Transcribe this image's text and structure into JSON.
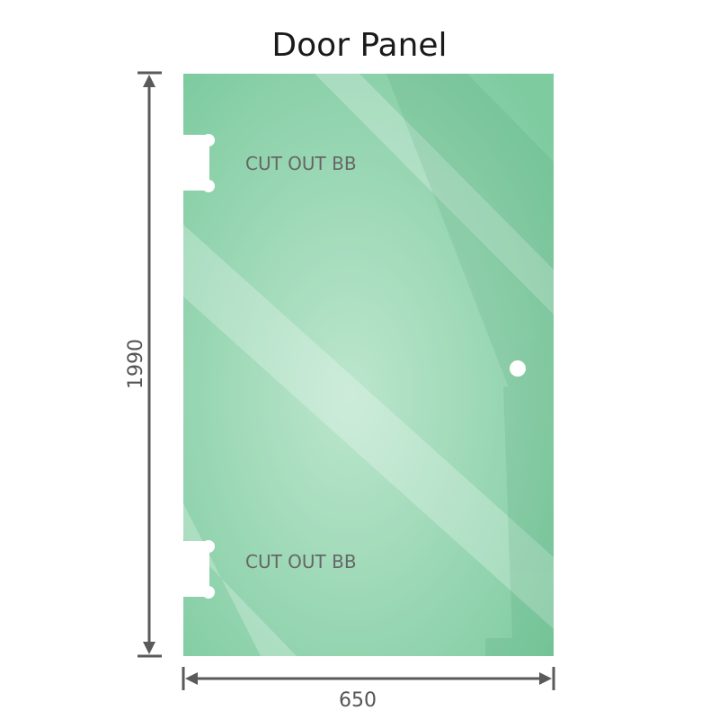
{
  "title": "Door Panel",
  "cutout_top_label": "CUT OUT BB",
  "cutout_bottom_label": "CUT OUT BB",
  "height_dim": "1990",
  "width_dim": "650",
  "colors": {
    "glass_edge": "#7ecba0",
    "glass_center": "#bce6cd",
    "dimension_line": "#5a5a5a"
  }
}
